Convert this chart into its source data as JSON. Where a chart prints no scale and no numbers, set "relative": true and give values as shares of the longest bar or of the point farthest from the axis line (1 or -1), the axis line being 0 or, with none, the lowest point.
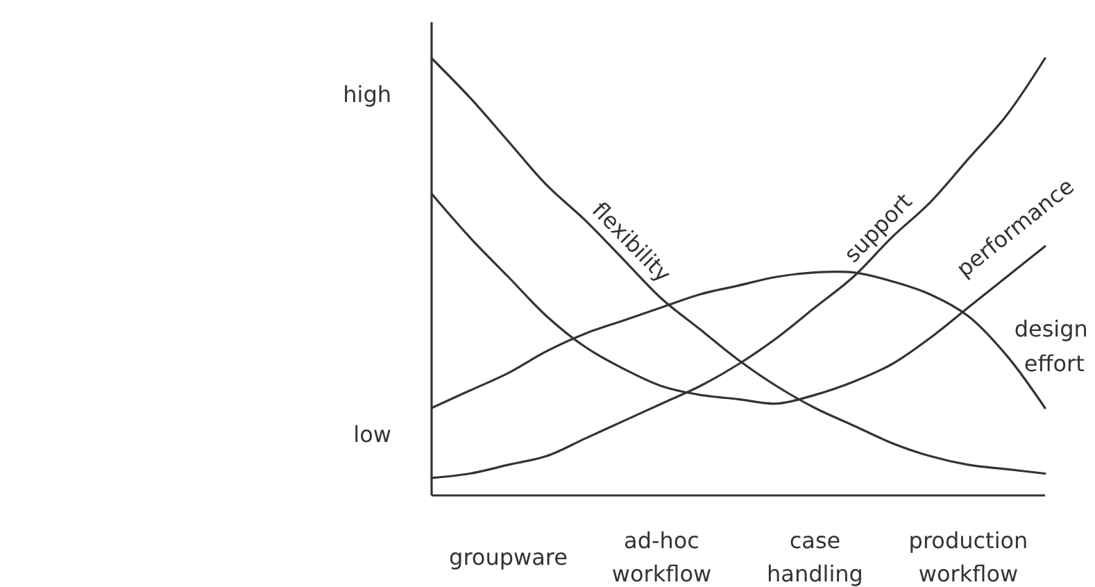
{
  "chart_data": {
    "type": "line",
    "relative": true,
    "categories": [
      null,
      null,
      "groupware",
      null,
      null,
      null,
      "ad-hoc workflow",
      null,
      null,
      null,
      "case handling",
      null,
      null,
      null,
      "production workflow",
      null,
      null
    ],
    "annotations": [
      "high",
      "low"
    ],
    "series": [
      {
        "name": "flexibility",
        "color": "#333333",
        "values": [
          1,
          0.91,
          0.81,
          0.71,
          0.63,
          0.54,
          0.45,
          0.38,
          0.31,
          0.25,
          0.2,
          0.16,
          0.12,
          0.09,
          0.07,
          0.06,
          0.05
        ]
      },
      {
        "name": "support",
        "color": "#333333",
        "values": [
          0.04,
          0.05,
          0.07,
          0.09,
          0.13,
          0.17,
          0.21,
          0.25,
          0.3,
          0.36,
          0.43,
          0.5,
          0.59,
          0.67,
          0.77,
          0.87,
          1
        ]
      },
      {
        "name": "performance",
        "color": "#333333",
        "values": [
          0.69,
          0.59,
          0.5,
          0.41,
          0.34,
          0.29,
          0.25,
          0.23,
          0.22,
          0.21,
          0.23,
          0.26,
          0.3,
          0.36,
          0.43,
          0.5,
          0.57
        ]
      },
      {
        "name": "design effort",
        "color": "#333333",
        "values": [
          0.2,
          0.24,
          0.28,
          0.33,
          0.37,
          0.4,
          0.43,
          0.46,
          0.48,
          0.5,
          0.51,
          0.51,
          0.49,
          0.46,
          0.41,
          0.32,
          0.2
        ]
      }
    ]
  }
}
